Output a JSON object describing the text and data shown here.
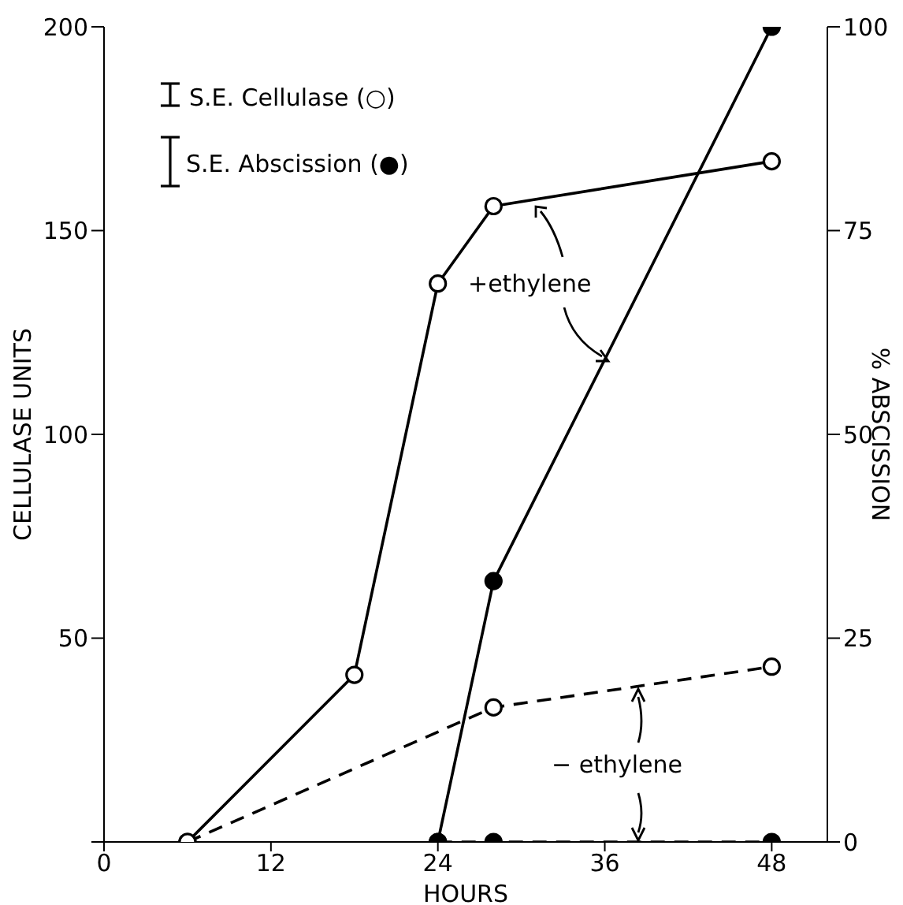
{
  "chart_data": {
    "type": "line",
    "xlabel": "HOURS",
    "ylabel": "CELLULASE UNITS",
    "y2label": "% ABSCISSION",
    "xlim": [
      0,
      52
    ],
    "xticks": [
      0,
      12,
      24,
      36,
      48
    ],
    "ylim": [
      0,
      200
    ],
    "yticks": [
      {
        "value": 0,
        "label": null
      },
      50,
      100,
      150,
      200
    ],
    "y2lim": [
      0,
      100
    ],
    "y2ticks": [
      0,
      25,
      50,
      75,
      100
    ],
    "grid": false,
    "legend": false,
    "marker": "circle",
    "annotations": [
      "S.E. Cellulase (○)",
      "S.E. Abscission (●)",
      "+ethylene",
      "− ethylene"
    ],
    "series": [
      {
        "color": "#000000",
        "line_style": "solid",
        "x": [
          6,
          18,
          24,
          28,
          48
        ],
        "values": [
          0,
          41,
          137,
          156,
          167
        ]
      },
      {
        "color": "#000000",
        "line_style": "dashed",
        "x": [
          6,
          28,
          48
        ],
        "values": [
          0,
          33,
          43
        ]
      },
      {
        "color": "#000000",
        "line_style": "solid",
        "axis": "y2",
        "x": [
          24,
          28,
          48
        ],
        "values": [
          0,
          32,
          100
        ]
      },
      {
        "color": "#000000",
        "line_style": "dashed",
        "axis": "y2",
        "x": [
          24,
          28,
          48
        ],
        "values": [
          0,
          0,
          0
        ]
      }
    ]
  }
}
